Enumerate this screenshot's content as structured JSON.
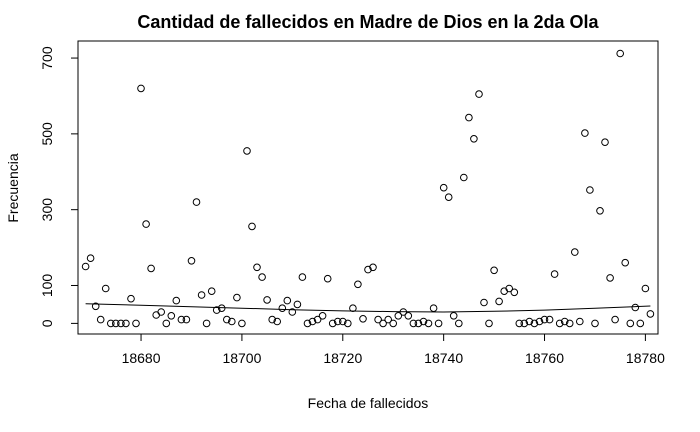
{
  "chart_data": {
    "type": "scatter",
    "title": "Cantidad de fallecidos en Madre de Dios en la 2da Ola",
    "xlabel": "Fecha de fallecidos",
    "ylabel": "Frecuencia",
    "xlim": [
      18667.5,
      18782.5
    ],
    "ylim": [
      -28,
      745
    ],
    "xticks": [
      18680,
      18700,
      18720,
      18740,
      18760,
      18780
    ],
    "xtick_labels": [
      "18680",
      "18700",
      "18720",
      "18740",
      "18760",
      "18780"
    ],
    "yticks": [
      0,
      100,
      300,
      500,
      700
    ],
    "ytick_labels": [
      "0",
      "100",
      "300",
      "500",
      "700"
    ],
    "grid": false,
    "points": [
      [
        18669,
        150
      ],
      [
        18670,
        172
      ],
      [
        18671,
        45
      ],
      [
        18672,
        10
      ],
      [
        18673,
        92
      ],
      [
        18674,
        0
      ],
      [
        18675,
        0
      ],
      [
        18676,
        0
      ],
      [
        18677,
        0
      ],
      [
        18678,
        65
      ],
      [
        18679,
        0
      ],
      [
        18680,
        620
      ],
      [
        18681,
        262
      ],
      [
        18682,
        145
      ],
      [
        18683,
        22
      ],
      [
        18684,
        30
      ],
      [
        18685,
        0
      ],
      [
        18686,
        20
      ],
      [
        18687,
        60
      ],
      [
        18688,
        10
      ],
      [
        18689,
        10
      ],
      [
        18690,
        165
      ],
      [
        18691,
        320
      ],
      [
        18692,
        75
      ],
      [
        18693,
        0
      ],
      [
        18694,
        85
      ],
      [
        18695,
        35
      ],
      [
        18696,
        40
      ],
      [
        18697,
        10
      ],
      [
        18698,
        5
      ],
      [
        18699,
        68
      ],
      [
        18700,
        0
      ],
      [
        18701,
        455
      ],
      [
        18702,
        256
      ],
      [
        18703,
        148
      ],
      [
        18704,
        122
      ],
      [
        18705,
        62
      ],
      [
        18706,
        10
      ],
      [
        18707,
        5
      ],
      [
        18708,
        40
      ],
      [
        18709,
        60
      ],
      [
        18710,
        30
      ],
      [
        18711,
        50
      ],
      [
        18712,
        122
      ],
      [
        18713,
        0
      ],
      [
        18714,
        5
      ],
      [
        18715,
        10
      ],
      [
        18716,
        20
      ],
      [
        18717,
        118
      ],
      [
        18718,
        0
      ],
      [
        18719,
        5
      ],
      [
        18720,
        5
      ],
      [
        18721,
        0
      ],
      [
        18722,
        40
      ],
      [
        18723,
        103
      ],
      [
        18724,
        12
      ],
      [
        18725,
        142
      ],
      [
        18726,
        148
      ],
      [
        18727,
        10
      ],
      [
        18728,
        0
      ],
      [
        18729,
        10
      ],
      [
        18730,
        0
      ],
      [
        18731,
        20
      ],
      [
        18732,
        30
      ],
      [
        18733,
        20
      ],
      [
        18734,
        0
      ],
      [
        18735,
        0
      ],
      [
        18736,
        5
      ],
      [
        18737,
        0
      ],
      [
        18738,
        40
      ],
      [
        18739,
        0
      ],
      [
        18740,
        358
      ],
      [
        18741,
        333
      ],
      [
        18742,
        20
      ],
      [
        18743,
        0
      ],
      [
        18744,
        385
      ],
      [
        18745,
        543
      ],
      [
        18746,
        487
      ],
      [
        18747,
        605
      ],
      [
        18748,
        55
      ],
      [
        18749,
        0
      ],
      [
        18750,
        140
      ],
      [
        18751,
        58
      ],
      [
        18752,
        85
      ],
      [
        18753,
        92
      ],
      [
        18754,
        82
      ],
      [
        18755,
        0
      ],
      [
        18756,
        0
      ],
      [
        18757,
        5
      ],
      [
        18758,
        0
      ],
      [
        18759,
        5
      ],
      [
        18760,
        10
      ],
      [
        18761,
        10
      ],
      [
        18762,
        130
      ],
      [
        18763,
        0
      ],
      [
        18764,
        5
      ],
      [
        18765,
        0
      ],
      [
        18766,
        188
      ],
      [
        18767,
        5
      ],
      [
        18768,
        502
      ],
      [
        18769,
        352
      ],
      [
        18770,
        0
      ],
      [
        18771,
        297
      ],
      [
        18772,
        478
      ],
      [
        18773,
        120
      ],
      [
        18774,
        10
      ],
      [
        18775,
        712
      ],
      [
        18776,
        160
      ],
      [
        18777,
        0
      ],
      [
        18778,
        42
      ],
      [
        18779,
        0
      ],
      [
        18780,
        92
      ],
      [
        18781,
        25
      ]
    ],
    "smooth_line": [
      [
        18669,
        52
      ],
      [
        18680,
        48
      ],
      [
        18690,
        44
      ],
      [
        18700,
        40
      ],
      [
        18710,
        36
      ],
      [
        18720,
        33
      ],
      [
        18730,
        31
      ],
      [
        18740,
        30
      ],
      [
        18750,
        32
      ],
      [
        18760,
        35
      ],
      [
        18770,
        40
      ],
      [
        18781,
        46
      ]
    ]
  }
}
